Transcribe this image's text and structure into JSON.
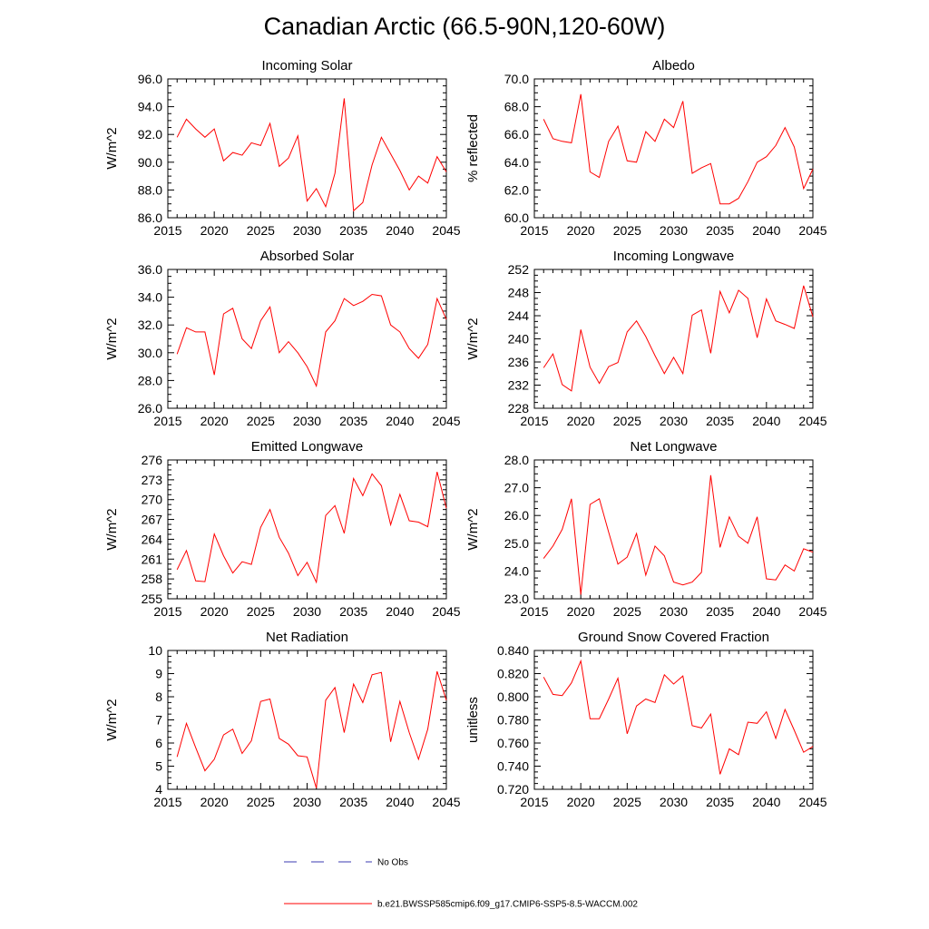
{
  "title": "Canadian Arctic (66.5-90N,120-60W)",
  "colors": {
    "model": "#ff0000",
    "obs": "#3b3bb0",
    "axis": "#000000"
  },
  "legend": {
    "obs_label": "No Obs",
    "model_label": "b.e21.BWSSP585cmip6.f09_g17.CMIP6-SSP5-8.5-WACCM.002"
  },
  "chart_data": [
    {
      "type": "line",
      "title": "Incoming Solar",
      "ylabel": "W/m^2",
      "xlim": [
        2015,
        2045
      ],
      "xticks": [
        2015,
        2020,
        2025,
        2030,
        2035,
        2040,
        2045
      ],
      "ylim": [
        86,
        96
      ],
      "yticks": [
        "86.0",
        "88.0",
        "90.0",
        "92.0",
        "94.0",
        "96.0"
      ],
      "yminor": 1,
      "x": [
        2016,
        2017,
        2018,
        2019,
        2020,
        2021,
        2022,
        2023,
        2024,
        2025,
        2026,
        2027,
        2028,
        2029,
        2030,
        2031,
        2032,
        2033,
        2034,
        2035,
        2036,
        2037,
        2038,
        2039,
        2040,
        2041,
        2042,
        2043,
        2044,
        2045
      ],
      "values": [
        91.8,
        93.1,
        92.4,
        91.8,
        92.4,
        90.1,
        90.7,
        90.5,
        91.4,
        91.2,
        92.8,
        89.7,
        90.3,
        91.9,
        87.2,
        88.1,
        86.8,
        89.2,
        94.6,
        86.5,
        87.1,
        89.8,
        91.8,
        90.6,
        89.4,
        88.0,
        89.0,
        88.5,
        90.4,
        89.3
      ]
    },
    {
      "type": "line",
      "title": "Albedo",
      "ylabel": "% reflected",
      "xlim": [
        2015,
        2045
      ],
      "xticks": [
        2015,
        2020,
        2025,
        2030,
        2035,
        2040,
        2045
      ],
      "ylim": [
        60,
        70
      ],
      "yticks": [
        "60.0",
        "62.0",
        "64.0",
        "66.0",
        "68.0",
        "70.0"
      ],
      "yminor": 1,
      "x": [
        2016,
        2017,
        2018,
        2019,
        2020,
        2021,
        2022,
        2023,
        2024,
        2025,
        2026,
        2027,
        2028,
        2029,
        2030,
        2031,
        2032,
        2033,
        2034,
        2035,
        2036,
        2037,
        2038,
        2039,
        2040,
        2041,
        2042,
        2043,
        2044,
        2045
      ],
      "values": [
        67.1,
        65.7,
        65.5,
        65.4,
        68.9,
        63.3,
        62.9,
        65.5,
        66.6,
        64.1,
        64.0,
        66.2,
        65.5,
        67.1,
        66.5,
        68.4,
        63.2,
        63.6,
        63.9,
        61.0,
        61.0,
        61.4,
        62.6,
        64.0,
        64.4,
        65.2,
        66.5,
        65.1,
        62.1,
        63.5
      ]
    },
    {
      "type": "line",
      "title": "Absorbed Solar",
      "ylabel": "W/m^2",
      "xlim": [
        2015,
        2045
      ],
      "xticks": [
        2015,
        2020,
        2025,
        2030,
        2035,
        2040,
        2045
      ],
      "ylim": [
        26,
        36
      ],
      "yticks": [
        "26.0",
        "28.0",
        "30.0",
        "32.0",
        "34.0",
        "36.0"
      ],
      "yminor": 1,
      "x": [
        2016,
        2017,
        2018,
        2019,
        2020,
        2021,
        2022,
        2023,
        2024,
        2025,
        2026,
        2027,
        2028,
        2029,
        2030,
        2031,
        2032,
        2033,
        2034,
        2035,
        2036,
        2037,
        2038,
        2039,
        2040,
        2041,
        2042,
        2043,
        2044,
        2045
      ],
      "values": [
        29.9,
        31.8,
        31.5,
        31.5,
        28.4,
        32.8,
        33.2,
        31.0,
        30.3,
        32.3,
        33.3,
        30.0,
        30.8,
        30.0,
        29.0,
        27.6,
        31.5,
        32.3,
        33.9,
        33.4,
        33.7,
        34.2,
        34.1,
        32.0,
        31.5,
        30.3,
        29.6,
        30.6,
        33.9,
        32.4
      ]
    },
    {
      "type": "line",
      "title": "Incoming Longwave",
      "ylabel": "W/m^2",
      "xlim": [
        2015,
        2045
      ],
      "xticks": [
        2015,
        2020,
        2025,
        2030,
        2035,
        2040,
        2045
      ],
      "ylim": [
        228,
        252
      ],
      "yticks": [
        "228",
        "232",
        "236",
        "240",
        "244",
        "248",
        "252"
      ],
      "yminor": 1,
      "x": [
        2016,
        2017,
        2018,
        2019,
        2020,
        2021,
        2022,
        2023,
        2024,
        2025,
        2026,
        2027,
        2028,
        2029,
        2030,
        2031,
        2032,
        2033,
        2034,
        2035,
        2036,
        2037,
        2038,
        2039,
        2040,
        2041,
        2042,
        2043,
        2044,
        2045
      ],
      "values": [
        235.0,
        237.4,
        232.1,
        231.0,
        241.6,
        235.1,
        232.3,
        235.2,
        235.9,
        241.2,
        243.1,
        240.4,
        237.1,
        234.0,
        236.8,
        234.0,
        244.1,
        245.0,
        237.5,
        248.2,
        244.5,
        248.4,
        247.0,
        240.2,
        246.9,
        243.1,
        242.5,
        241.8,
        249.2,
        243.8
      ]
    },
    {
      "type": "line",
      "title": "Emitted Longwave",
      "ylabel": "W/m^2",
      "xlim": [
        2015,
        2045
      ],
      "xticks": [
        2015,
        2020,
        2025,
        2030,
        2035,
        2040,
        2045
      ],
      "ylim": [
        255,
        276
      ],
      "yticks": [
        "255",
        "258",
        "261",
        "264",
        "267",
        "270",
        "273",
        "276"
      ],
      "yminor": 1,
      "x": [
        2016,
        2017,
        2018,
        2019,
        2020,
        2021,
        2022,
        2023,
        2024,
        2025,
        2026,
        2027,
        2028,
        2029,
        2030,
        2031,
        2032,
        2033,
        2034,
        2035,
        2036,
        2037,
        2038,
        2039,
        2040,
        2041,
        2042,
        2043,
        2044,
        2045
      ],
      "values": [
        259.4,
        262.3,
        257.7,
        257.6,
        264.8,
        261.5,
        258.9,
        260.6,
        260.2,
        265.8,
        268.5,
        264.3,
        261.9,
        258.5,
        260.5,
        257.5,
        267.6,
        269.1,
        264.9,
        273.2,
        270.6,
        273.9,
        272.1,
        266.2,
        270.8,
        266.8,
        266.6,
        265.9,
        274.2,
        268.7
      ]
    },
    {
      "type": "line",
      "title": "Net Longwave",
      "ylabel": "W/m^2",
      "xlim": [
        2015,
        2045
      ],
      "xticks": [
        2015,
        2020,
        2025,
        2030,
        2035,
        2040,
        2045
      ],
      "ylim": [
        23,
        28
      ],
      "yticks": [
        "23.0",
        "24.0",
        "25.0",
        "26.0",
        "27.0",
        "28.0"
      ],
      "yminor": 1,
      "x": [
        2016,
        2017,
        2018,
        2019,
        2020,
        2021,
        2022,
        2023,
        2024,
        2025,
        2026,
        2027,
        2028,
        2029,
        2030,
        2031,
        2032,
        2033,
        2034,
        2035,
        2036,
        2037,
        2038,
        2039,
        2040,
        2041,
        2042,
        2043,
        2044,
        2045
      ],
      "values": [
        24.45,
        24.9,
        25.5,
        26.6,
        23.15,
        26.4,
        26.6,
        25.4,
        24.25,
        24.5,
        25.35,
        23.85,
        24.9,
        24.55,
        23.6,
        23.5,
        23.6,
        23.95,
        27.45,
        24.85,
        25.95,
        25.25,
        25.0,
        25.95,
        23.72,
        23.68,
        24.22,
        24.0,
        24.8,
        24.68
      ]
    },
    {
      "type": "line",
      "title": "Net Radiation",
      "ylabel": "W/m^2",
      "xlim": [
        2015,
        2045
      ],
      "xticks": [
        2015,
        2020,
        2025,
        2030,
        2035,
        2040,
        2045
      ],
      "ylim": [
        4,
        10
      ],
      "yticks": [
        "4",
        "5",
        "6",
        "7",
        "8",
        "9",
        "10"
      ],
      "yminor": 1,
      "x": [
        2016,
        2017,
        2018,
        2019,
        2020,
        2021,
        2022,
        2023,
        2024,
        2025,
        2026,
        2027,
        2028,
        2029,
        2030,
        2031,
        2032,
        2033,
        2034,
        2035,
        2036,
        2037,
        2038,
        2039,
        2040,
        2041,
        2042,
        2043,
        2044,
        2045
      ],
      "values": [
        5.4,
        6.85,
        5.8,
        4.8,
        5.3,
        6.35,
        6.6,
        5.55,
        6.1,
        7.8,
        7.9,
        6.2,
        5.95,
        5.45,
        5.4,
        4.05,
        7.85,
        8.4,
        6.45,
        8.55,
        7.75,
        8.95,
        9.05,
        6.05,
        7.8,
        6.45,
        5.3,
        6.6,
        9.1,
        7.85
      ]
    },
    {
      "type": "line",
      "title": "Ground Snow Covered Fraction",
      "ylabel": "unitless",
      "xlim": [
        2015,
        2045
      ],
      "xticks": [
        2015,
        2020,
        2025,
        2030,
        2035,
        2040,
        2045
      ],
      "ylim": [
        0.72,
        0.84
      ],
      "yticks": [
        "0.720",
        "0.740",
        "0.760",
        "0.780",
        "0.800",
        "0.820",
        "0.840"
      ],
      "yminor": 1,
      "x": [
        2016,
        2017,
        2018,
        2019,
        2020,
        2021,
        2022,
        2023,
        2024,
        2025,
        2026,
        2027,
        2028,
        2029,
        2030,
        2031,
        2032,
        2033,
        2034,
        2035,
        2036,
        2037,
        2038,
        2039,
        2040,
        2041,
        2042,
        2043,
        2044,
        2045
      ],
      "values": [
        0.817,
        0.802,
        0.801,
        0.812,
        0.831,
        0.781,
        0.781,
        0.798,
        0.816,
        0.768,
        0.792,
        0.798,
        0.795,
        0.819,
        0.811,
        0.818,
        0.775,
        0.773,
        0.785,
        0.733,
        0.755,
        0.75,
        0.778,
        0.777,
        0.787,
        0.764,
        0.789,
        0.771,
        0.752,
        0.757
      ]
    }
  ]
}
